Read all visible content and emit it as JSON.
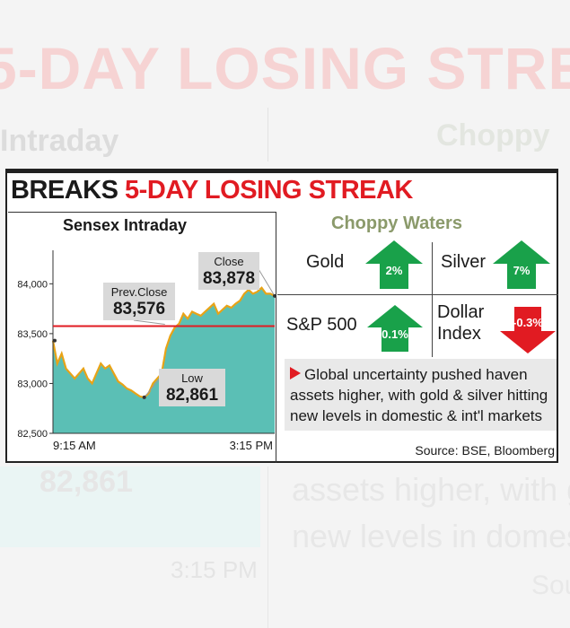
{
  "headline": {
    "prefix": "BREAKS",
    "highlight": "5-DAY LOSING STREAK"
  },
  "chart_data": {
    "type": "area",
    "title": "Sensex Intraday",
    "x_tick_labels": [
      "9:15 AM",
      "3:15 PM"
    ],
    "y_ticks": [
      82500,
      83000,
      83500,
      84000
    ],
    "y_tick_labels": [
      "82,500",
      "83,000",
      "83,500",
      "84,000"
    ],
    "ylim": [
      82500,
      84300
    ],
    "prev_close": {
      "label": "Prev.Close",
      "value": 83576,
      "display": "83,576"
    },
    "low": {
      "label": "Low",
      "value": 82861,
      "display": "82,861"
    },
    "close": {
      "label": "Close",
      "value": 83878,
      "display": "83,878"
    },
    "series": [
      {
        "values": [
          83430,
          83200,
          83300,
          83150,
          83100,
          83050,
          83100,
          83150,
          83050,
          83000,
          83100,
          83200,
          83150,
          83180,
          83100,
          83020,
          82990,
          82950,
          82930,
          82900,
          82870,
          82861,
          82900,
          83000,
          83050,
          83100,
          83350,
          83480,
          83560,
          83600,
          83700,
          83650,
          83720,
          83700,
          83680,
          83720,
          83760,
          83800,
          83700,
          83740,
          83780,
          83760,
          83800,
          83830,
          83900,
          83940,
          83900,
          83920,
          83960,
          83900,
          83900,
          83878
        ],
        "color": "#e8a317",
        "fill": "#5bbfb5"
      }
    ],
    "grid": false,
    "colors": {
      "prev_close_line": "#e11b22"
    }
  },
  "panel": {
    "title": "Choppy Waters",
    "assets": [
      {
        "name": "Gold",
        "change": "2%",
        "direction": "up",
        "color": "#19a14a"
      },
      {
        "name": "Silver",
        "change": "7%",
        "direction": "up",
        "color": "#19a14a"
      },
      {
        "name": "S&P 500",
        "change": "0.1%",
        "direction": "up",
        "color": "#19a14a"
      },
      {
        "name": "Dollar Index",
        "change": "-0.3%",
        "direction": "down",
        "color": "#e11b22"
      }
    ],
    "note": "Global uncertainty pushed haven assets higher, with gold & silver hitting new levels in domestic & int'l markets",
    "source": "Source: BSE, Bloomberg"
  }
}
